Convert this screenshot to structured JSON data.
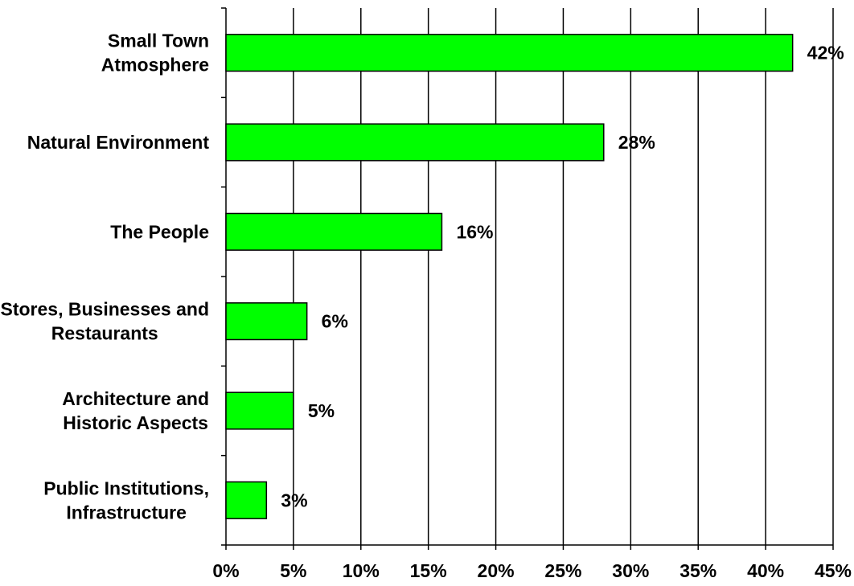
{
  "chart_data": {
    "type": "bar",
    "orientation": "horizontal",
    "title": "",
    "xlabel": "",
    "ylabel": "",
    "categories": [
      [
        "Small Town",
        "Atmosphere"
      ],
      [
        "Natural Environment"
      ],
      [
        "The People"
      ],
      [
        "Stores, Businesses and",
        "Restaurants"
      ],
      [
        "Architecture and",
        "Historic Aspects"
      ],
      [
        "Public Institutions,",
        "Infrastructure"
      ]
    ],
    "values": [
      42,
      28,
      16,
      6,
      5,
      3
    ],
    "value_labels": [
      "42%",
      "28%",
      "16%",
      "6%",
      "5%",
      "3%"
    ],
    "xlim": [
      0,
      45
    ],
    "x_ticks": [
      0,
      5,
      10,
      15,
      20,
      25,
      30,
      35,
      40,
      45
    ],
    "x_tick_labels": [
      "0%",
      "5%",
      "10%",
      "15%",
      "20%",
      "25%",
      "30%",
      "35%",
      "40%",
      "45%"
    ],
    "grid": "vertical",
    "legend": "none",
    "bar_color": "#00ff00",
    "bar_edge_color": "#000000"
  }
}
